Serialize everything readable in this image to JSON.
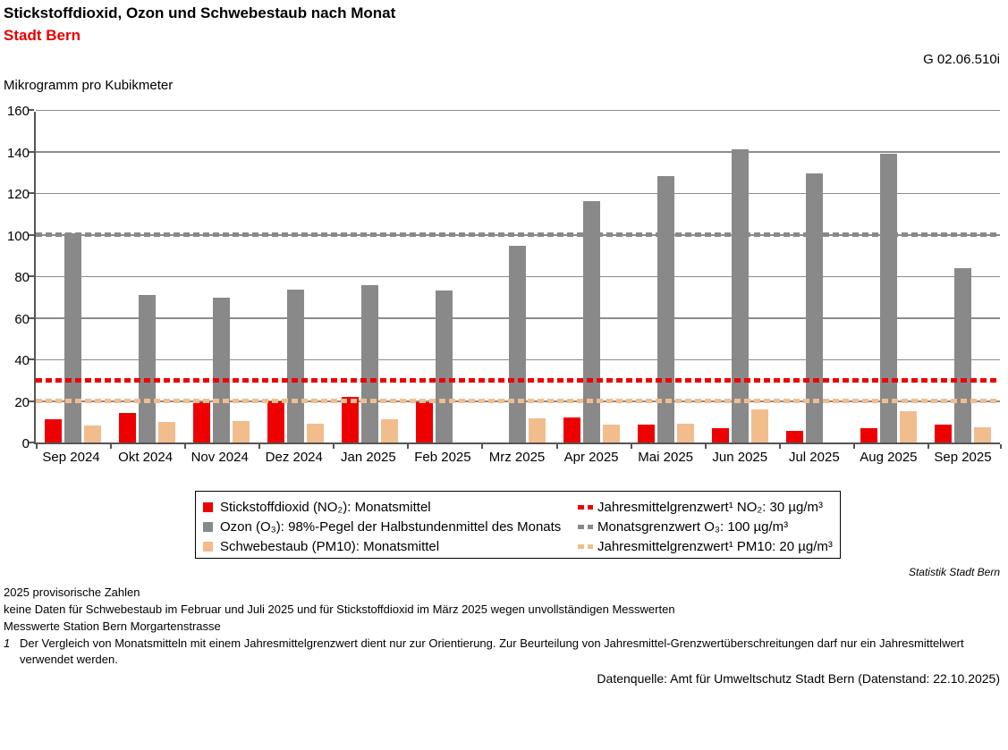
{
  "header": {
    "title": "Stickstoffdioxid, Ozon und Schwebestaub nach Monat",
    "subtitle": "Stadt Bern",
    "chart_code": "G 02.06.510i",
    "unit_label": "Mikrogramm pro Kubikmeter"
  },
  "chart_data": {
    "type": "bar",
    "title": "Stickstoffdioxid, Ozon und Schwebestaub nach Monat",
    "subtitle": "Stadt Bern",
    "ylabel": "Mikrogramm pro Kubikmeter",
    "ylim": [
      0,
      160
    ],
    "ytick_step": 20,
    "grid": true,
    "legend_position": "bottom",
    "categories": [
      "Sep 2024",
      "Okt 2024",
      "Nov 2024",
      "Dez 2024",
      "Jan 2025",
      "Feb 2025",
      "Mrz 2025",
      "Apr 2025",
      "Mai 2025",
      "Jun 2025",
      "Jul 2025",
      "Aug 2025",
      "Sep 2025"
    ],
    "series": [
      {
        "id": "no2",
        "name": "Stickstoffdioxid (NO₂): Monatsmittel",
        "color": "#ee0000",
        "values": [
          11,
          14,
          19.5,
          20,
          22,
          19.5,
          null,
          12,
          8.5,
          7,
          5.5,
          7,
          8.5
        ]
      },
      {
        "id": "o3",
        "name": "Ozon (O₃): 98%-Pegel der Halbstundenmittel des Monats",
        "color": "#898989",
        "values": [
          100.5,
          71,
          69.5,
          73.5,
          75.5,
          73,
          94.5,
          116,
          128,
          141,
          129.5,
          139,
          84
        ]
      },
      {
        "id": "pm10",
        "name": "Schwebestaub (PM10): Monatsmittel",
        "color": "#f2bd8d",
        "values": [
          8,
          10,
          10.5,
          9,
          11,
          null,
          11.5,
          8.5,
          9,
          16,
          null,
          15,
          7.5
        ]
      }
    ],
    "reference_lines": [
      {
        "id": "no2-limit",
        "name": "Jahresmittelgrenzwert¹ NO₂: 30 µg/m³",
        "value": 30,
        "color": "#ee0000"
      },
      {
        "id": "o3-limit",
        "name": "Monatsgrenzwert O₃: 100 µg/m³",
        "value": 100,
        "color": "#898989"
      },
      {
        "id": "pm10-limit",
        "name": "Jahresmittelgrenzwert¹ PM10: 20 µg/m³",
        "value": 20,
        "color": "#f2bd8d"
      }
    ]
  },
  "footer": {
    "attribution": "Statistik Stadt Bern",
    "note1": "2025 provisorische Zahlen",
    "note2": "keine Daten für Schwebestaub im Februar und Juli 2025 und für Stickstoffdioxid im März 2025 wegen unvollständigen Messwerten",
    "note3": "Messwerte Station Bern Morgartenstrasse",
    "footnote": {
      "marker": "1",
      "lines": [
        "Der Vergleich von Monatsmitteln mit einem Jahresmittelgrenzwert dient nur zur Orientierung. Zur Beurteilung von Jahresmittel-Grenzwertüberschreitungen darf nur ein Jahresmittelwert",
        "verwendet werden."
      ]
    },
    "source": "Datenquelle: Amt für Umweltschutz Stadt Bern (Datenstand: 22.10.2025)"
  }
}
